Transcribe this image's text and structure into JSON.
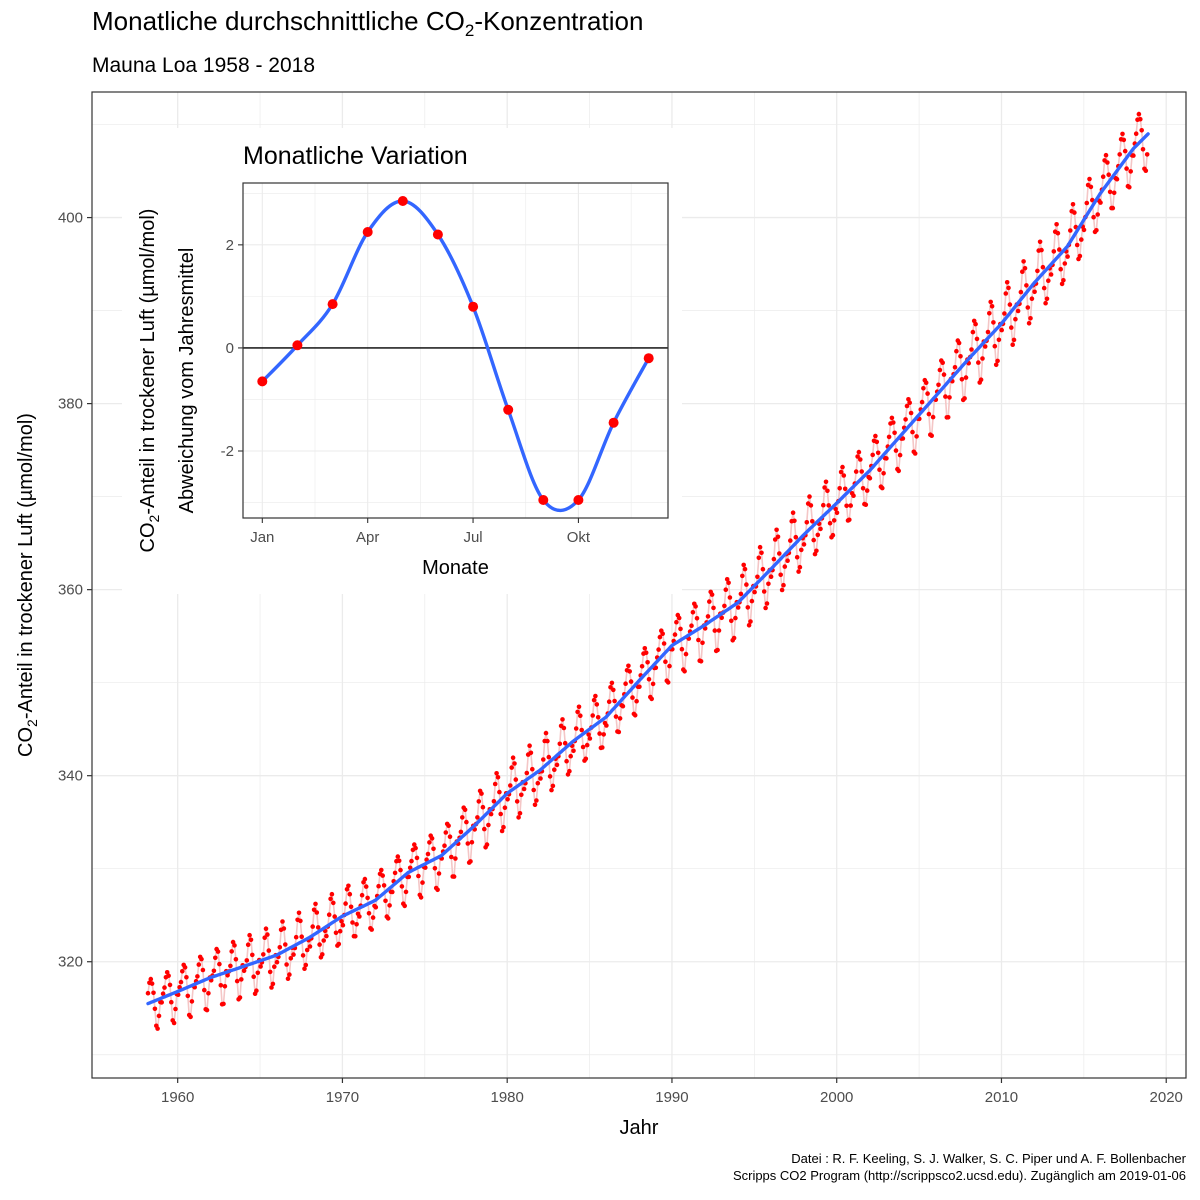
{
  "header": {
    "title_main": "Monatliche durchschnittliche CO",
    "title_sub": "2",
    "title_rest": "-Konzentration",
    "subtitle": "Mauna Loa 1958 - 2018"
  },
  "credits": {
    "line1": "Datei : R. F. Keeling, S. J. Walker, S. C. Piper und A. F. Bollenbacher",
    "line2": "Scripps CO2 Program (http://scrippsco2.ucsd.edu). Zugänglich am 2019-01-06"
  },
  "colors": {
    "points": "#ff0000",
    "trend": "#3366ff",
    "band": "#f4c6c6",
    "grid": "#ebebeb"
  },
  "chart_data": [
    {
      "type": "line",
      "name": "main",
      "xlabel": "Jahr",
      "ylabel_main": "CO",
      "ylabel_sub": "2",
      "ylabel_rest": "-Anteil in trockener Luft (µmol/mol)",
      "xlim": [
        1954.8,
        2021.2
      ],
      "ylim": [
        307.5,
        413.5
      ],
      "xticks": [
        1960,
        1970,
        1980,
        1990,
        2000,
        2010,
        2020
      ],
      "yticks": [
        320,
        340,
        360,
        380,
        400
      ],
      "grid": true,
      "series": [
        {
          "kind": "trend",
          "x": [
            1958.2,
            1960,
            1962,
            1964,
            1966,
            1968,
            1970,
            1972,
            1974,
            1976,
            1978,
            1980,
            1982,
            1984,
            1986,
            1988,
            1990,
            1992,
            1994,
            1996,
            1998,
            2000,
            2002,
            2004,
            2006,
            2008,
            2010,
            2012,
            2014,
            2016,
            2018,
            2018.9
          ],
          "values": [
            315.5,
            316.8,
            318.3,
            319.5,
            320.7,
            322.6,
            324.9,
            326.6,
            329.6,
            331.4,
            334.6,
            338.1,
            340.6,
            343.7,
            346.3,
            350.2,
            354.0,
            356.2,
            358.6,
            362.2,
            365.9,
            369.3,
            372.8,
            376.8,
            380.8,
            384.8,
            388.6,
            393.0,
            396.9,
            402.6,
            407.4,
            409.0
          ]
        },
        {
          "kind": "monthly",
          "x_start": 1958.2,
          "x_end": 2018.9,
          "step": 0.0833,
          "anomaly_by_month": [
            -0.65,
            0.05,
            0.85,
            2.25,
            2.85,
            2.2,
            0.8,
            -1.2,
            -2.95,
            -2.95,
            -1.45,
            -0.2
          ]
        }
      ]
    },
    {
      "type": "line",
      "name": "inset",
      "title": "Monatliche Variation",
      "xlabel": "Monate",
      "ylabel_line1_main": "CO",
      "ylabel_line1_sub": "2",
      "ylabel_line1_rest": "-Anteil in trockener Luft (µmol/mol)",
      "ylabel_line2": "Abweichung vom Jahresmittel",
      "x": [
        1,
        2,
        3,
        4,
        5,
        6,
        7,
        8,
        9,
        10,
        11,
        12
      ],
      "values": [
        -0.65,
        0.05,
        0.85,
        2.25,
        2.85,
        2.2,
        0.8,
        -1.2,
        -2.95,
        -2.95,
        -1.45,
        -0.2
      ],
      "xlim": [
        0.45,
        12.55
      ],
      "ylim": [
        -3.3,
        3.2
      ],
      "xticks": [
        1,
        4,
        7,
        10
      ],
      "xticklabels": [
        "Jan",
        "Apr",
        "Jul",
        "Okt"
      ],
      "yticks": [
        -2,
        0,
        2
      ],
      "reference_line": 0
    }
  ]
}
